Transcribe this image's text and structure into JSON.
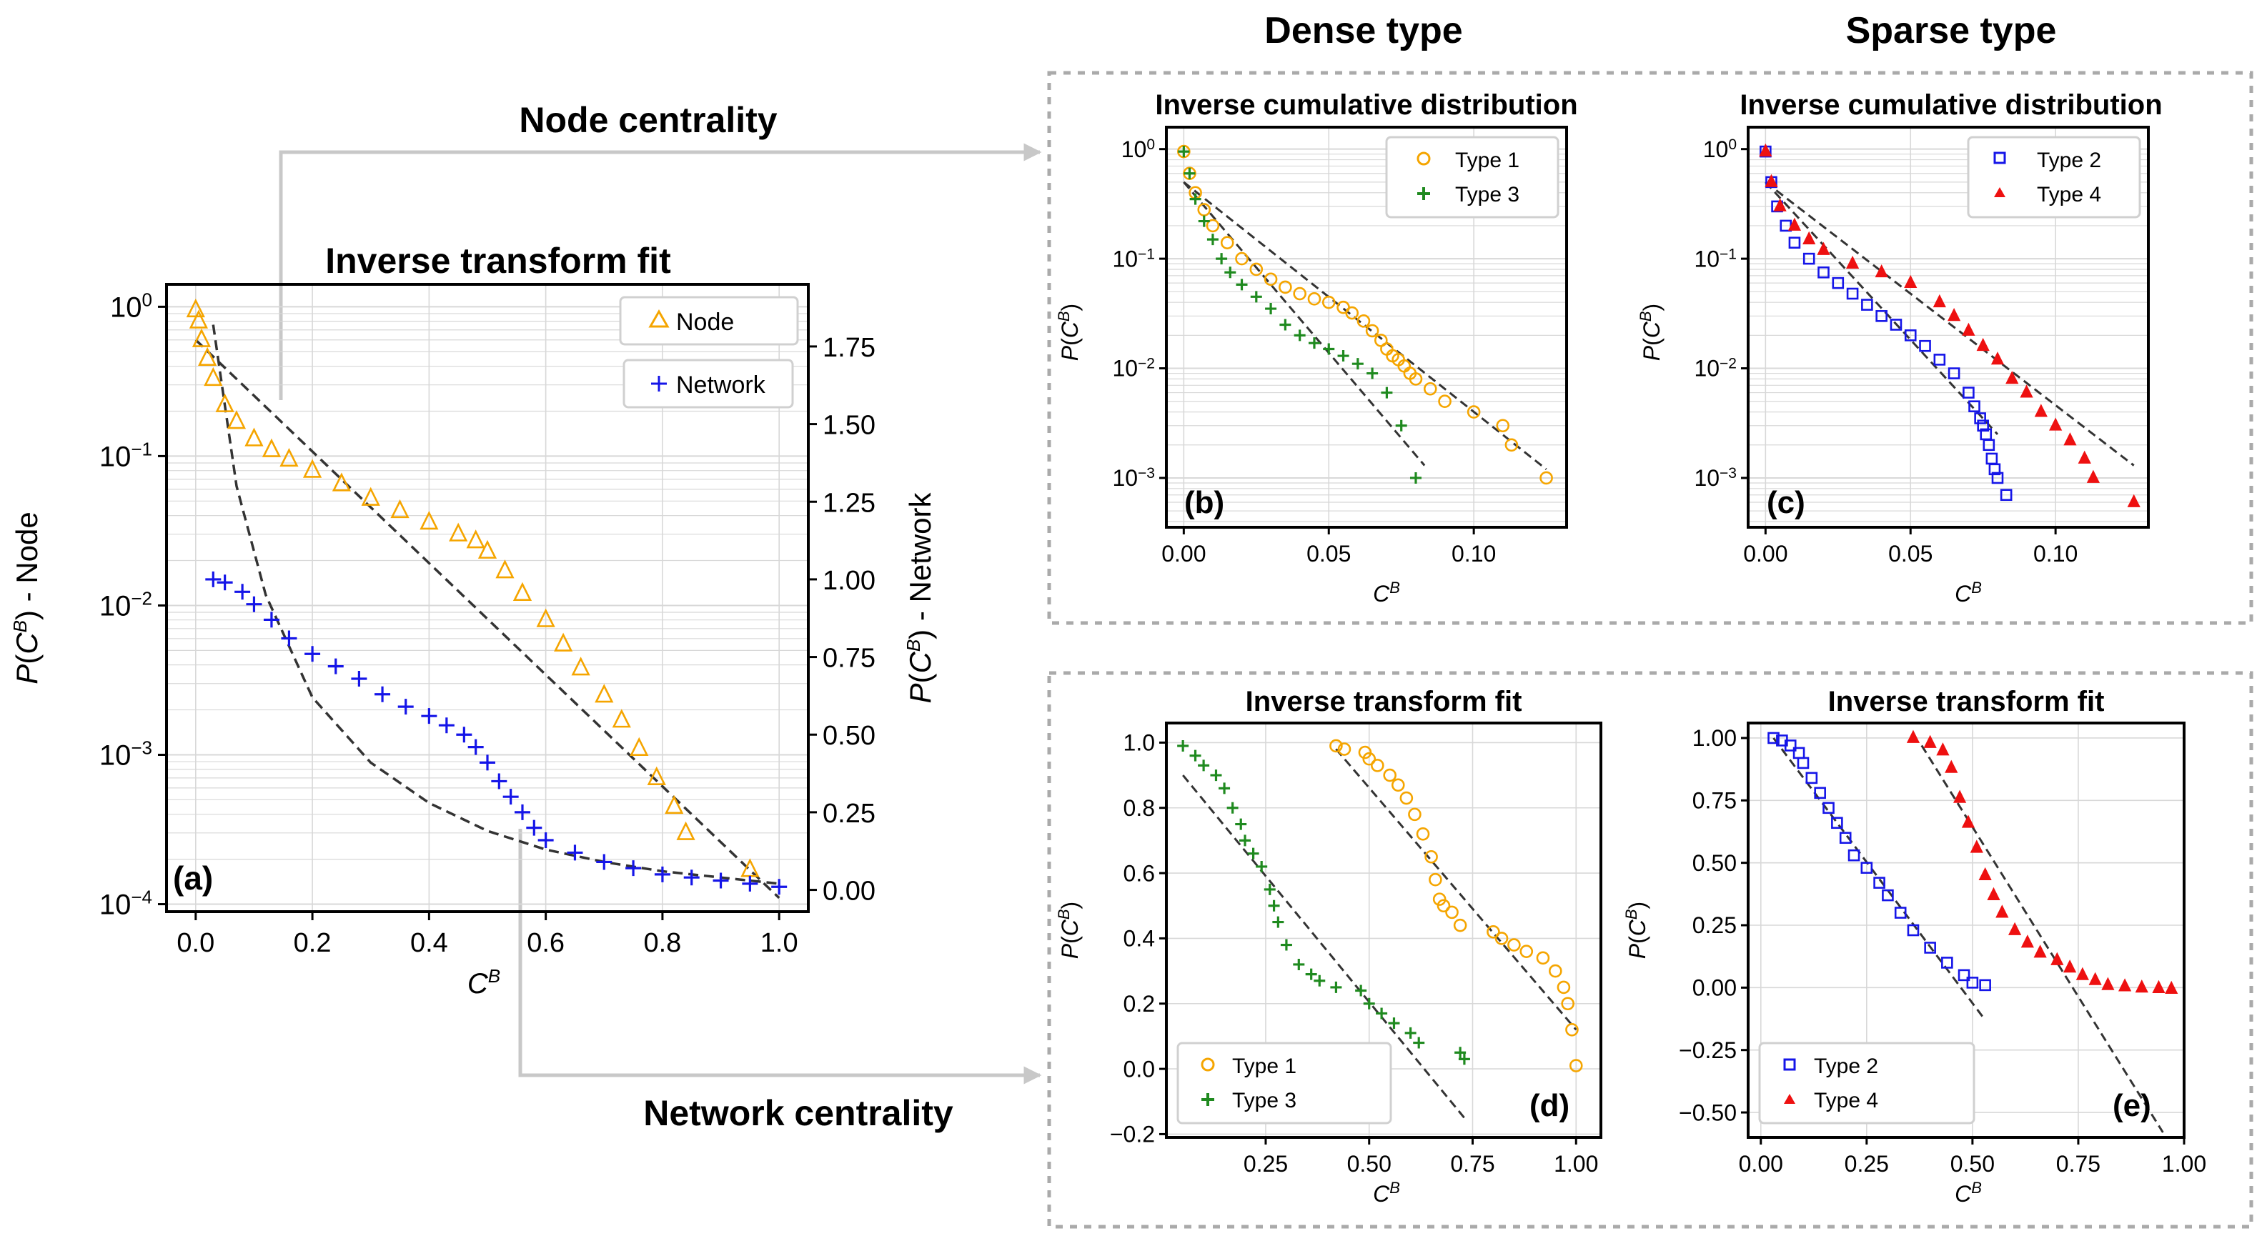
{
  "header": {
    "dense_title": "Dense type",
    "sparse_title": "Sparse type",
    "node_centrality_label": "Node centrality",
    "network_centrality_label": "Network centrality"
  },
  "colors": {
    "type1": "#f5a500",
    "type3": "#1f8a1f",
    "type2": "#1515e8",
    "type4": "#ee1010",
    "fit": "#333333",
    "grid": "#d8d8d8",
    "arrow": "#c8c8c8",
    "panel_border": "#aaaaaa"
  },
  "chart_data": [
    {
      "id": "a",
      "panel_label": "(a)",
      "type": "scatter",
      "title": "Inverse transform fit",
      "xlabel": "C^B",
      "ylabel_left": "P(C^B) - Node",
      "ylabel_right": "P(C^B) - Network",
      "x_ticks": [
        "0.0",
        "0.2",
        "0.4",
        "0.6",
        "0.8",
        "1.0"
      ],
      "y_left_ticks": [
        "10^0",
        "10^-1",
        "10^-2",
        "10^-3",
        "10^-4"
      ],
      "y_right_ticks": [
        "1.75",
        "1.50",
        "1.25",
        "1.00",
        "0.75",
        "0.50",
        "0.25",
        "0.00"
      ],
      "xlim": [
        -0.05,
        1.05
      ],
      "ylim_left_log": [
        -4.05,
        0.15
      ],
      "ylim_right": [
        -0.07,
        1.95
      ],
      "legend": [
        {
          "name": "Node",
          "marker": "triangle"
        },
        {
          "name": "Network",
          "marker": "plus"
        }
      ],
      "series": [
        {
          "name": "Node",
          "axis": "left",
          "marker": "triangle",
          "color": "#f5a500",
          "x": [
            0,
            0.005,
            0.01,
            0.02,
            0.03,
            0.05,
            0.07,
            0.1,
            0.13,
            0.16,
            0.2,
            0.25,
            0.3,
            0.35,
            0.4,
            0.45,
            0.48,
            0.5,
            0.53,
            0.56,
            0.6,
            0.63,
            0.66,
            0.7,
            0.73,
            0.76,
            0.79,
            0.82,
            0.84,
            0.95
          ],
          "y": [
            0.95,
            0.8,
            0.6,
            0.45,
            0.33,
            0.22,
            0.17,
            0.13,
            0.11,
            0.095,
            0.08,
            0.065,
            0.052,
            0.043,
            0.036,
            0.03,
            0.027,
            0.023,
            0.017,
            0.012,
            0.008,
            0.0055,
            0.0038,
            0.0025,
            0.0017,
            0.0011,
            0.0007,
            0.00045,
            0.0003,
            0.00017
          ]
        },
        {
          "name": "Network",
          "axis": "right",
          "marker": "plus",
          "color": "#1515e8",
          "x": [
            0.03,
            0.05,
            0.08,
            0.1,
            0.13,
            0.16,
            0.2,
            0.24,
            0.28,
            0.32,
            0.36,
            0.4,
            0.43,
            0.46,
            0.48,
            0.5,
            0.52,
            0.54,
            0.56,
            0.58,
            0.6,
            0.65,
            0.7,
            0.75,
            0.8,
            0.85,
            0.9,
            0.95,
            1.0
          ],
          "y": [
            1.0,
            0.99,
            0.96,
            0.92,
            0.87,
            0.81,
            0.76,
            0.72,
            0.68,
            0.63,
            0.59,
            0.56,
            0.53,
            0.5,
            0.46,
            0.41,
            0.35,
            0.3,
            0.25,
            0.2,
            0.16,
            0.12,
            0.09,
            0.07,
            0.05,
            0.04,
            0.03,
            0.02,
            0.01
          ]
        }
      ],
      "fits": [
        {
          "axis": "left",
          "x": [
            0,
            1.0
          ],
          "y": [
            0.6,
            0.00011
          ]
        },
        {
          "axis": "right",
          "x": [
            0.03,
            0.07,
            0.12,
            0.2,
            0.3,
            0.4,
            0.5,
            0.6,
            0.7,
            0.8,
            0.9,
            1.0
          ],
          "y": [
            1.82,
            1.3,
            0.95,
            0.62,
            0.41,
            0.28,
            0.19,
            0.13,
            0.09,
            0.06,
            0.04,
            0.02
          ]
        }
      ]
    },
    {
      "id": "b",
      "panel_label": "(b)",
      "type": "scatter",
      "title": "Inverse cumulative distribution",
      "xlabel": "C^B",
      "ylabel": "P(C^B)",
      "x_ticks": [
        "0.00",
        "0.05",
        "0.10"
      ],
      "y_ticks": [
        "10^0",
        "10^-1",
        "10^-2",
        "10^-3"
      ],
      "xlim": [
        -0.006,
        0.132
      ],
      "ylim_log": [
        -3.45,
        0.2
      ],
      "legend": [
        {
          "name": "Type 1",
          "marker": "circle"
        },
        {
          "name": "Type 3",
          "marker": "plus"
        }
      ],
      "series": [
        {
          "name": "Type 1",
          "marker": "circle",
          "color": "#f5a500",
          "x": [
            0,
            0.002,
            0.004,
            0.007,
            0.01,
            0.015,
            0.02,
            0.025,
            0.03,
            0.035,
            0.04,
            0.045,
            0.05,
            0.055,
            0.058,
            0.062,
            0.065,
            0.068,
            0.07,
            0.072,
            0.074,
            0.076,
            0.078,
            0.08,
            0.085,
            0.09,
            0.1,
            0.11,
            0.113,
            0.125
          ],
          "y": [
            0.95,
            0.6,
            0.4,
            0.28,
            0.2,
            0.14,
            0.1,
            0.08,
            0.065,
            0.055,
            0.048,
            0.043,
            0.04,
            0.036,
            0.032,
            0.027,
            0.022,
            0.018,
            0.015,
            0.013,
            0.012,
            0.0105,
            0.009,
            0.008,
            0.0065,
            0.005,
            0.004,
            0.003,
            0.002,
            0.001
          ]
        },
        {
          "name": "Type 3",
          "marker": "plus",
          "color": "#1f8a1f",
          "x": [
            0,
            0.002,
            0.004,
            0.007,
            0.01,
            0.013,
            0.016,
            0.02,
            0.025,
            0.03,
            0.035,
            0.04,
            0.045,
            0.05,
            0.055,
            0.06,
            0.065,
            0.07,
            0.075,
            0.08
          ],
          "y": [
            0.95,
            0.6,
            0.35,
            0.22,
            0.15,
            0.1,
            0.075,
            0.058,
            0.045,
            0.035,
            0.025,
            0.02,
            0.017,
            0.015,
            0.013,
            0.011,
            0.009,
            0.006,
            0.003,
            0.001
          ]
        }
      ],
      "fits": [
        {
          "x": [
            0,
            0.125
          ],
          "y": [
            0.5,
            0.0012
          ]
        },
        {
          "x": [
            0,
            0.083
          ],
          "y": [
            0.5,
            0.0013
          ]
        }
      ]
    },
    {
      "id": "c",
      "panel_label": "(c)",
      "type": "scatter",
      "title": "Inverse cumulative distribution",
      "xlabel": "C^B",
      "ylabel": "P(C^B)",
      "x_ticks": [
        "0.00",
        "0.05",
        "0.10"
      ],
      "y_ticks": [
        "10^0",
        "10^-1",
        "10^-2",
        "10^-3"
      ],
      "xlim": [
        -0.006,
        0.132
      ],
      "ylim_log": [
        -3.45,
        0.2
      ],
      "legend": [
        {
          "name": "Type 2",
          "marker": "square"
        },
        {
          "name": "Type 4",
          "marker": "triangle"
        }
      ],
      "series": [
        {
          "name": "Type 2",
          "marker": "square",
          "color": "#1515e8",
          "x": [
            0,
            0.002,
            0.004,
            0.007,
            0.01,
            0.015,
            0.02,
            0.025,
            0.03,
            0.035,
            0.04,
            0.045,
            0.05,
            0.055,
            0.06,
            0.065,
            0.07,
            0.072,
            0.074,
            0.075,
            0.076,
            0.077,
            0.078,
            0.079,
            0.08,
            0.083
          ],
          "y": [
            0.95,
            0.5,
            0.3,
            0.2,
            0.14,
            0.1,
            0.075,
            0.06,
            0.048,
            0.038,
            0.03,
            0.025,
            0.02,
            0.016,
            0.012,
            0.009,
            0.006,
            0.0045,
            0.0035,
            0.003,
            0.0025,
            0.002,
            0.0015,
            0.0012,
            0.001,
            0.0007
          ]
        },
        {
          "name": "Type 4",
          "marker": "triangle",
          "color": "#ee1010",
          "x": [
            0,
            0.002,
            0.005,
            0.01,
            0.015,
            0.02,
            0.03,
            0.04,
            0.05,
            0.06,
            0.065,
            0.07,
            0.075,
            0.08,
            0.085,
            0.09,
            0.095,
            0.1,
            0.105,
            0.11,
            0.113,
            0.127
          ],
          "y": [
            0.95,
            0.5,
            0.3,
            0.2,
            0.15,
            0.12,
            0.09,
            0.075,
            0.06,
            0.04,
            0.03,
            0.022,
            0.016,
            0.012,
            0.008,
            0.006,
            0.004,
            0.003,
            0.0022,
            0.0015,
            0.001,
            0.0006
          ]
        }
      ],
      "fits": [
        {
          "x": [
            0,
            0.127
          ],
          "y": [
            0.5,
            0.0013
          ]
        },
        {
          "x": [
            0,
            0.08
          ],
          "y": [
            0.5,
            0.0025
          ]
        }
      ]
    },
    {
      "id": "d",
      "panel_label": "(d)",
      "type": "scatter",
      "title": "Inverse transform fit",
      "xlabel": "C^B",
      "ylabel": "P(C^B)",
      "x_ticks": [
        "0.25",
        "0.50",
        "0.75",
        "1.00"
      ],
      "x_tick_values": [
        0.25,
        0.5,
        0.75,
        1.0
      ],
      "y_ticks": [
        "1.0",
        "0.8",
        "0.6",
        "0.4",
        "0.2",
        "0.0",
        "−0.2"
      ],
      "y_tick_values": [
        1.0,
        0.8,
        0.6,
        0.4,
        0.2,
        0.0,
        -0.2
      ],
      "xlim": [
        0.01,
        1.06
      ],
      "ylim": [
        -0.21,
        1.06
      ],
      "legend": [
        {
          "name": "Type 1",
          "marker": "circle"
        },
        {
          "name": "Type 3",
          "marker": "plus"
        }
      ],
      "series": [
        {
          "name": "Type 1",
          "marker": "circle",
          "color": "#f5a500",
          "x": [
            0.42,
            0.44,
            0.49,
            0.5,
            0.52,
            0.55,
            0.57,
            0.59,
            0.61,
            0.63,
            0.65,
            0.66,
            0.67,
            0.68,
            0.7,
            0.72,
            0.8,
            0.82,
            0.85,
            0.88,
            0.92,
            0.95,
            0.97,
            0.98,
            0.99,
            1.0
          ],
          "y": [
            0.99,
            0.98,
            0.97,
            0.95,
            0.93,
            0.9,
            0.87,
            0.83,
            0.78,
            0.72,
            0.65,
            0.58,
            0.52,
            0.5,
            0.48,
            0.44,
            0.42,
            0.4,
            0.38,
            0.36,
            0.34,
            0.3,
            0.25,
            0.2,
            0.12,
            0.01
          ]
        },
        {
          "name": "Type 3",
          "marker": "plus",
          "color": "#1f8a1f",
          "x": [
            0.05,
            0.08,
            0.1,
            0.13,
            0.15,
            0.17,
            0.19,
            0.2,
            0.22,
            0.24,
            0.26,
            0.27,
            0.28,
            0.3,
            0.33,
            0.36,
            0.38,
            0.42,
            0.48,
            0.5,
            0.53,
            0.56,
            0.6,
            0.62,
            0.72,
            0.73
          ],
          "y": [
            0.99,
            0.96,
            0.93,
            0.9,
            0.86,
            0.8,
            0.75,
            0.7,
            0.66,
            0.62,
            0.55,
            0.5,
            0.45,
            0.38,
            0.32,
            0.29,
            0.27,
            0.25,
            0.24,
            0.2,
            0.17,
            0.14,
            0.11,
            0.08,
            0.05,
            0.03
          ]
        }
      ],
      "fits": [
        {
          "x": [
            0.42,
            1.0
          ],
          "y": [
            0.98,
            0.12
          ]
        },
        {
          "x": [
            0.05,
            0.73
          ],
          "y": [
            0.9,
            -0.15
          ]
        }
      ]
    },
    {
      "id": "e",
      "panel_label": "(e)",
      "type": "scatter",
      "title": "Inverse transform fit",
      "xlabel": "C^B",
      "ylabel": "P(C^B)",
      "x_ticks": [
        "0.00",
        "0.25",
        "0.50",
        "0.75",
        "1.00"
      ],
      "x_tick_values": [
        0,
        0.25,
        0.5,
        0.75,
        1.0
      ],
      "y_ticks": [
        "1.00",
        "0.75",
        "0.50",
        "0.25",
        "0.00",
        "−0.25",
        "−0.50"
      ],
      "y_tick_values": [
        1.0,
        0.75,
        0.5,
        0.25,
        0.0,
        -0.25,
        -0.5
      ],
      "xlim": [
        -0.03,
        1.0
      ],
      "ylim": [
        -0.6,
        1.06
      ],
      "legend": [
        {
          "name": "Type 2",
          "marker": "square"
        },
        {
          "name": "Type 4",
          "marker": "triangle"
        }
      ],
      "series": [
        {
          "name": "Type 2",
          "marker": "square",
          "color": "#1515e8",
          "x": [
            0.03,
            0.05,
            0.07,
            0.09,
            0.1,
            0.12,
            0.14,
            0.16,
            0.18,
            0.2,
            0.22,
            0.25,
            0.28,
            0.3,
            0.33,
            0.36,
            0.4,
            0.44,
            0.48,
            0.5,
            0.53
          ],
          "y": [
            1.0,
            0.99,
            0.97,
            0.94,
            0.9,
            0.84,
            0.78,
            0.72,
            0.66,
            0.6,
            0.53,
            0.48,
            0.42,
            0.37,
            0.3,
            0.23,
            0.16,
            0.1,
            0.05,
            0.02,
            0.01
          ]
        },
        {
          "name": "Type 4",
          "marker": "triangle",
          "color": "#ee1010",
          "x": [
            0.36,
            0.4,
            0.43,
            0.45,
            0.47,
            0.49,
            0.51,
            0.53,
            0.55,
            0.57,
            0.6,
            0.63,
            0.66,
            0.7,
            0.73,
            0.76,
            0.79,
            0.82,
            0.86,
            0.9,
            0.94,
            0.97
          ],
          "y": [
            1.0,
            0.98,
            0.95,
            0.88,
            0.76,
            0.66,
            0.56,
            0.45,
            0.37,
            0.3,
            0.23,
            0.18,
            0.14,
            0.11,
            0.08,
            0.05,
            0.03,
            0.01,
            0.005,
            0.0,
            -0.002,
            -0.005
          ]
        }
      ],
      "fits": [
        {
          "x": [
            0.03,
            0.53
          ],
          "y": [
            1.0,
            -0.13
          ]
        },
        {
          "x": [
            0.38,
            0.95
          ],
          "y": [
            0.97,
            -0.58
          ]
        }
      ]
    }
  ]
}
